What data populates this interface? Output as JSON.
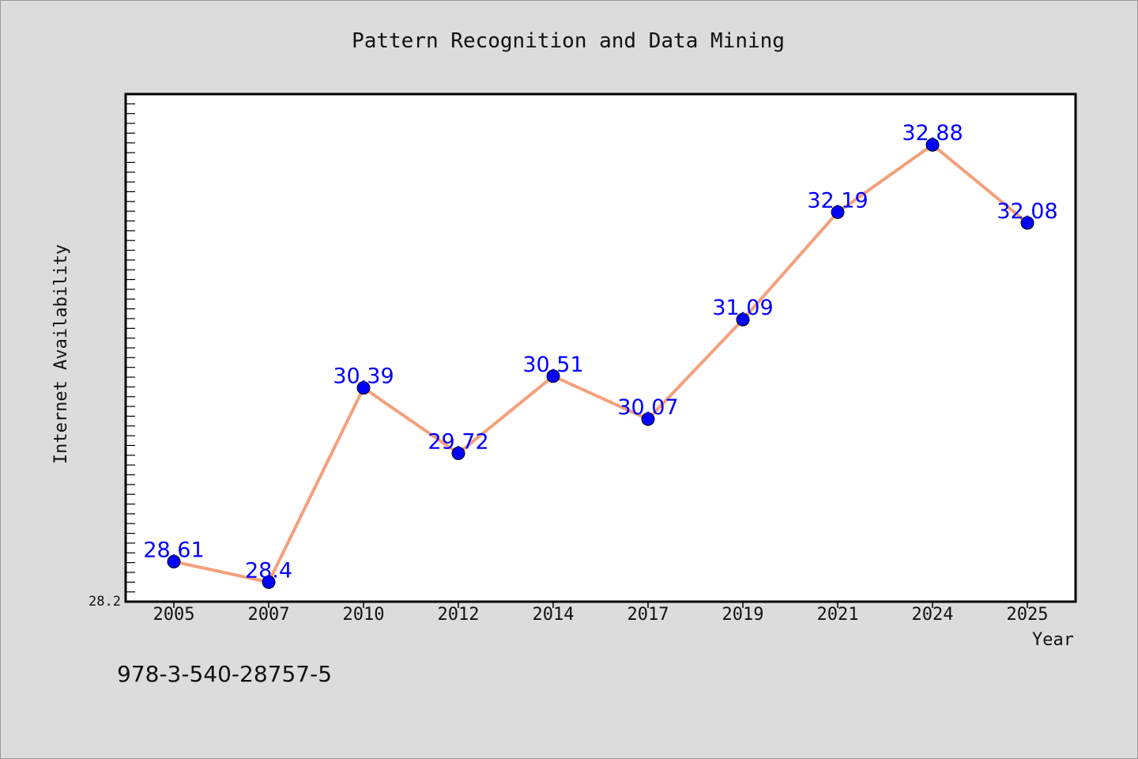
{
  "chart_data": {
    "type": "line",
    "title": "Pattern Recognition and Data Mining",
    "xlabel": "Year",
    "ylabel": "Internet Availability",
    "categories": [
      "2005",
      "2007",
      "2010",
      "2012",
      "2014",
      "2017",
      "2019",
      "2021",
      "2024",
      "2025"
    ],
    "series": [
      {
        "values": [
          28.61,
          28.4,
          30.39,
          29.72,
          30.51,
          30.07,
          31.09,
          32.19,
          32.88,
          32.08
        ],
        "labels": [
          "28.61",
          "28.4",
          "30.39",
          "29.72",
          "30.51",
          "30.07",
          "31.09",
          "32.19",
          "32.88",
          "32.08"
        ],
        "line_color": "#f4a07c",
        "marker_color": "#0000ff"
      }
    ],
    "ylim": [
      28.2,
      33.4
    ],
    "y_tick_labels": [
      "28.2"
    ],
    "grid": false,
    "legend": "none",
    "colors": {
      "background": "#dcdcdc",
      "plot_background": "#ffffff",
      "label_color": "#0000ff"
    }
  },
  "footer_text": "978-3-540-28757-5"
}
